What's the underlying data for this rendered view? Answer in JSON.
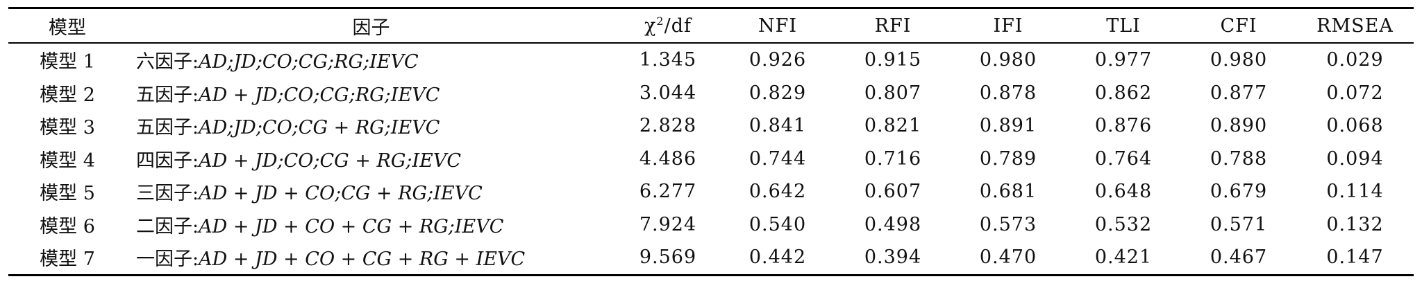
{
  "table": {
    "headers": {
      "model": "模型",
      "factor": "因子",
      "chi_symbol": "χ",
      "chi_sup": "2",
      "chi_suffix": "/df",
      "nfi": "NFI",
      "rfi": "RFI",
      "ifi": "IFI",
      "tli": "TLI",
      "cfi": "CFI",
      "rmsea": "RMSEA"
    },
    "rows": [
      {
        "model": "模型 1",
        "factor_prefix": "六因子:",
        "factor_math": "AD;JD;CO;CG;RG;IEVC",
        "chi_df": "1.345",
        "nfi": "0.926",
        "rfi": "0.915",
        "ifi": "0.980",
        "tli": "0.977",
        "cfi": "0.980",
        "rmsea": "0.029"
      },
      {
        "model": "模型 2",
        "factor_prefix": "五因子:",
        "factor_math": "AD + JD;CO;CG;RG;IEVC",
        "chi_df": "3.044",
        "nfi": "0.829",
        "rfi": "0.807",
        "ifi": "0.878",
        "tli": "0.862",
        "cfi": "0.877",
        "rmsea": "0.072"
      },
      {
        "model": "模型 3",
        "factor_prefix": "五因子:",
        "factor_math": "AD;JD;CO;CG + RG;IEVC",
        "chi_df": "2.828",
        "nfi": "0.841",
        "rfi": "0.821",
        "ifi": "0.891",
        "tli": "0.876",
        "cfi": "0.890",
        "rmsea": "0.068"
      },
      {
        "model": "模型 4",
        "factor_prefix": "四因子:",
        "factor_math": "AD + JD;CO;CG + RG;IEVC",
        "chi_df": "4.486",
        "nfi": "0.744",
        "rfi": "0.716",
        "ifi": "0.789",
        "tli": "0.764",
        "cfi": "0.788",
        "rmsea": "0.094"
      },
      {
        "model": "模型 5",
        "factor_prefix": "三因子:",
        "factor_math": "AD + JD + CO;CG + RG;IEVC",
        "chi_df": "6.277",
        "nfi": "0.642",
        "rfi": "0.607",
        "ifi": "0.681",
        "tli": "0.648",
        "cfi": "0.679",
        "rmsea": "0.114"
      },
      {
        "model": "模型 6",
        "factor_prefix": "二因子:",
        "factor_math": "AD + JD + CO + CG + RG;IEVC",
        "chi_df": "7.924",
        "nfi": "0.540",
        "rfi": "0.498",
        "ifi": "0.573",
        "tli": "0.532",
        "cfi": "0.571",
        "rmsea": "0.132"
      },
      {
        "model": "模型 7",
        "factor_prefix": "一因子:",
        "factor_math": "AD + JD + CO + CG + RG + IEVC",
        "chi_df": "9.569",
        "nfi": "0.442",
        "rfi": "0.394",
        "ifi": "0.470",
        "tli": "0.421",
        "cfi": "0.467",
        "rmsea": "0.147"
      }
    ]
  }
}
